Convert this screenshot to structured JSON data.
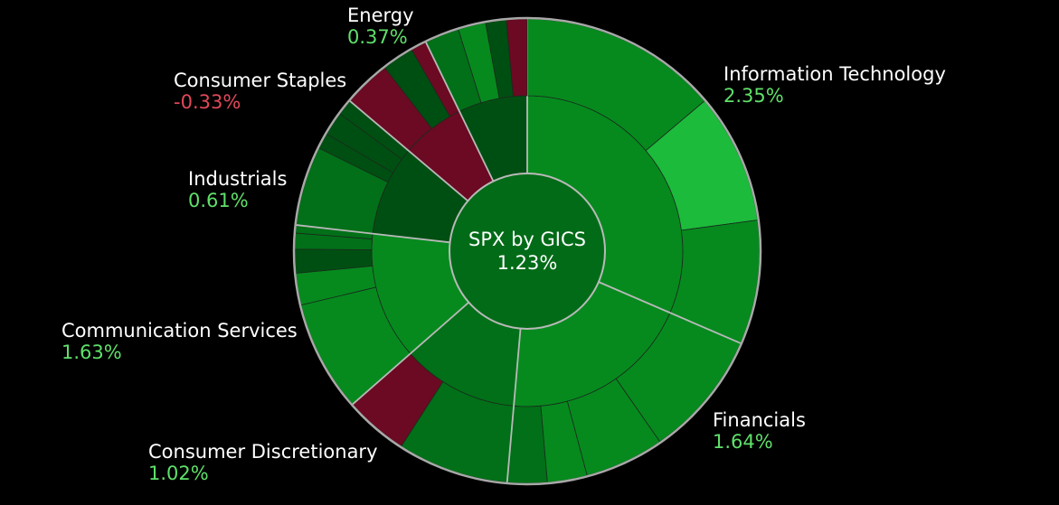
{
  "chart_data": {
    "type": "sunburst",
    "title": "SPX by GICS",
    "value": "1.23%",
    "value_num": 1.23,
    "sectors": [
      {
        "name": "Information Technology",
        "value": "2.35%",
        "change": 2.35,
        "weight": 28.5,
        "subs": [
          {
            "weight": 16.0,
            "change": 2.0
          },
          {
            "weight": 10.5,
            "change": 4.0
          },
          {
            "weight": 10.0,
            "change": 1.5
          }
        ]
      },
      {
        "name": "Financials",
        "value": "1.64%",
        "change": 1.64,
        "weight": 18.0,
        "subs": [
          {
            "weight": 8.0,
            "change": 1.5
          },
          {
            "weight": 5.0,
            "change": 2.3
          },
          {
            "weight": 2.5,
            "change": 1.8
          },
          {
            "weight": 2.5,
            "change": 1.1
          }
        ]
      },
      {
        "name": "Consumer Discretionary",
        "value": "1.02%",
        "change": 1.02,
        "weight": 11.0,
        "subs": [
          {
            "weight": 7.0,
            "change": 1.2
          },
          {
            "weight": 4.0,
            "change": -0.6
          }
        ]
      },
      {
        "name": "Communication Services",
        "value": "1.63%",
        "change": 1.63,
        "weight": 12.0,
        "subs": [
          {
            "weight": 7.0,
            "change": 1.6
          },
          {
            "weight": 2.0,
            "change": 1.7
          },
          {
            "weight": 1.5,
            "change": 0.7
          },
          {
            "weight": 1.0,
            "change": 1.0
          },
          {
            "weight": 0.5,
            "change": 1.2
          }
        ]
      },
      {
        "name": "Industrials",
        "value": "0.61%",
        "change": 0.61,
        "weight": 8.5,
        "subs": [
          {
            "weight": 5.0,
            "change": 0.9
          },
          {
            "weight": 1.0,
            "change": 0.6
          },
          {
            "weight": 1.5,
            "change": 0.5
          },
          {
            "weight": 1.0,
            "change": 0.8
          }
        ]
      },
      {
        "name": "Consumer Staples",
        "value": "-0.33%",
        "change": -0.33,
        "weight": 6.0,
        "subs": [
          {
            "weight": 3.0,
            "change": -0.5
          },
          {
            "weight": 2.0,
            "change": 0.7
          },
          {
            "weight": 1.0,
            "change": -0.4
          }
        ]
      },
      {
        "name": "Energy",
        "value": "0.37%",
        "change": 0.37,
        "weight": 6.5,
        "subs": [
          {
            "weight": 2.5,
            "change": 0.9
          },
          {
            "weight": 2.0,
            "change": 1.4
          },
          {
            "weight": 1.5,
            "change": 0.7
          },
          {
            "weight": 1.5,
            "change": -0.5
          }
        ]
      }
    ],
    "colors": {
      "strong_pos": "#1cbb3c",
      "pos": "#068a1e",
      "mid_pos": "#017018",
      "weak_pos": "#004f12",
      "neg": "#6b0a22",
      "divider": "#b9b9b9",
      "outline": "#a8a8a8",
      "background": "#000000"
    }
  }
}
